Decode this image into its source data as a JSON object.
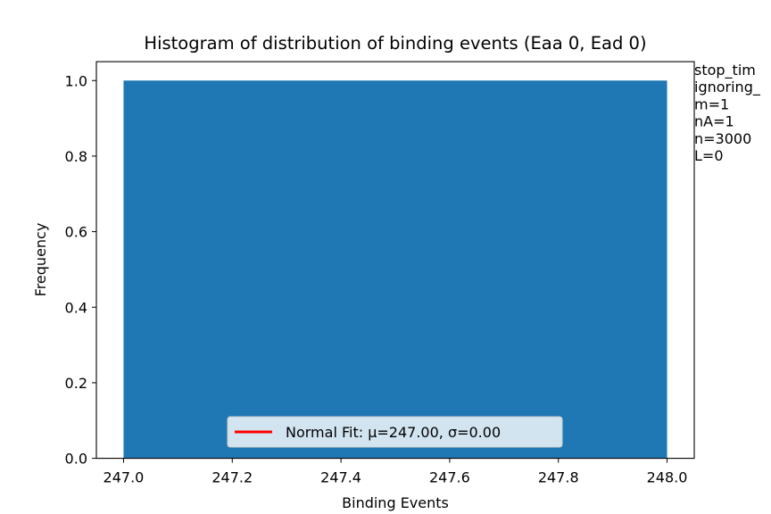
{
  "chart_data": {
    "type": "bar",
    "title": "Histogram of distribution of binding events (Eaa 0, Ead 0)",
    "xlabel": "Binding Events",
    "ylabel": "Frequency",
    "xlim": [
      246.95,
      248.05
    ],
    "ylim": [
      0,
      1.05
    ],
    "xticks": [
      247.0,
      247.2,
      247.4,
      247.6,
      247.8,
      248.0
    ],
    "xtick_labels": [
      "247.0",
      "247.2",
      "247.4",
      "247.6",
      "247.8",
      "248.0"
    ],
    "yticks": [
      0.0,
      0.2,
      0.4,
      0.6,
      0.8,
      1.0
    ],
    "ytick_labels": [
      "0.0",
      "0.2",
      "0.4",
      "0.6",
      "0.8",
      "1.0"
    ],
    "bins": [
      {
        "x0": 247.0,
        "x1": 248.0,
        "value": 1.0
      }
    ],
    "bar_color": "#1f77b4",
    "grid": false,
    "legend": {
      "placement": "lower-center",
      "entries": [
        {
          "label": "Normal Fit: μ=247.00, σ=0.00",
          "color": "#ff0000"
        }
      ]
    },
    "side_text": [
      "stop_tim",
      "ignoring_",
      "m=1",
      "nA=1",
      "n=3000",
      "L=0"
    ]
  }
}
